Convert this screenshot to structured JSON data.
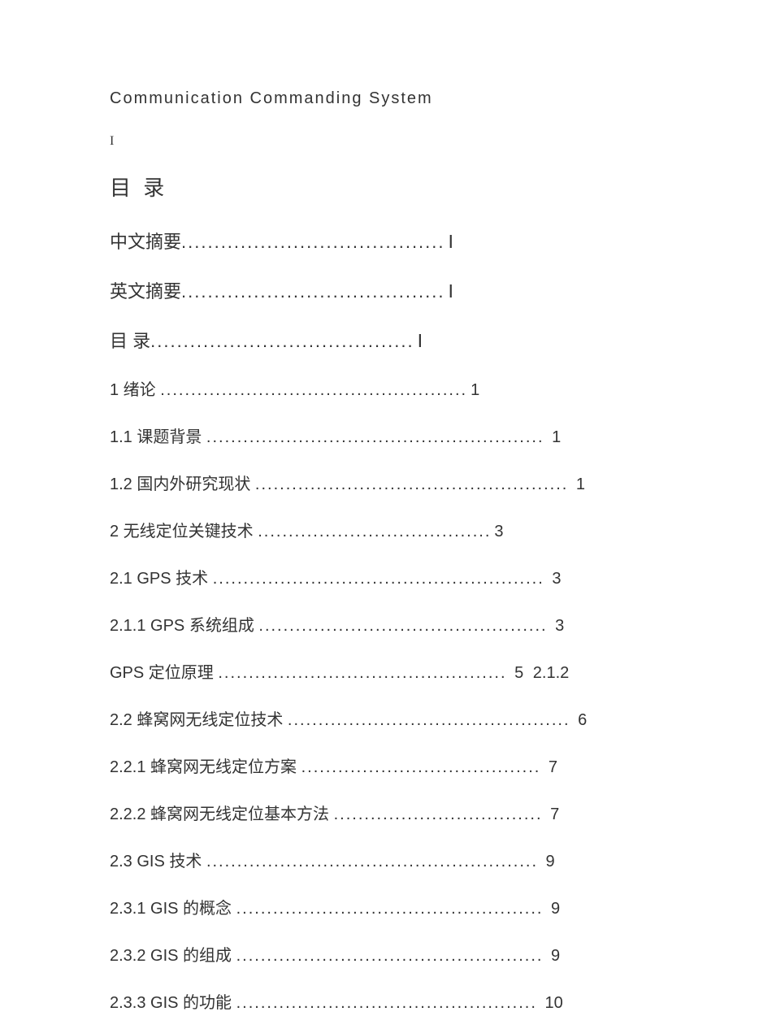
{
  "header": {
    "title": "Communication Commanding System",
    "page_marker": "I"
  },
  "toc": {
    "heading": "目 录",
    "entries": [
      {
        "label": "中文摘要",
        "dots": "........................................",
        "page": "Ⅰ",
        "major": true
      },
      {
        "label": "英文摘要",
        "dots": "........................................",
        "page": "Ⅰ",
        "major": true
      },
      {
        "label": "目 录",
        "dots": "........................................",
        "page": "Ⅰ",
        "major": true
      },
      {
        "label": "1 绪论 ",
        "dots": "..................................................",
        "page": "1",
        "major": false
      },
      {
        "label": "1.1 课题背景 ",
        "dots": ".......................................................",
        "page": " 1",
        "major": false
      },
      {
        "label": "1.2 国内外研究现状 ",
        "dots": "...................................................",
        "page": " 1",
        "major": false
      },
      {
        "label": "2 无线定位关键技术 ",
        "dots": "......................................",
        "page": "3",
        "major": false
      },
      {
        "label": "2.1 GPS 技术 ",
        "dots": "......................................................",
        "page": " 3",
        "major": false
      },
      {
        "label": "2.1.1 GPS 系统组成 ",
        "dots": "...............................................",
        "page": " 3",
        "major": false
      },
      {
        "label": "GPS 定位原理 ",
        "dots": "...............................................",
        "page": " 5",
        "suffix": " 2.1.2",
        "major": false
      },
      {
        "label": "2.2 蜂窝网无线定位技术 ",
        "dots": "..............................................",
        "page": " 6",
        "major": false
      },
      {
        "label": "2.2.1 蜂窝网无线定位方案 ",
        "dots": ".......................................",
        "page": " 7",
        "major": false
      },
      {
        "label": "2.2.2 蜂窝网无线定位基本方法 ",
        "dots": "..................................",
        "page": " 7",
        "major": false
      },
      {
        "label": "2.3 GIS 技术 ",
        "dots": "......................................................",
        "page": " 9",
        "major": false
      },
      {
        "label": "2.3.1 GIS 的概念 ",
        "dots": "..................................................",
        "page": " 9",
        "major": false
      },
      {
        "label": "2.3.2 GIS 的组成 ",
        "dots": "..................................................",
        "page": " 9",
        "major": false
      },
      {
        "label": "2.3.3 GIS 的功能 ",
        "dots": ".................................................",
        "page": " 10",
        "major": false
      }
    ]
  },
  "colors": {
    "background": "#ffffff",
    "text": "#333333"
  },
  "typography": {
    "body_font": "Microsoft YaHei",
    "header_fontsize": 20,
    "heading_fontsize": 26,
    "entry_fontsize": 20,
    "major_entry_fontsize": 22
  }
}
